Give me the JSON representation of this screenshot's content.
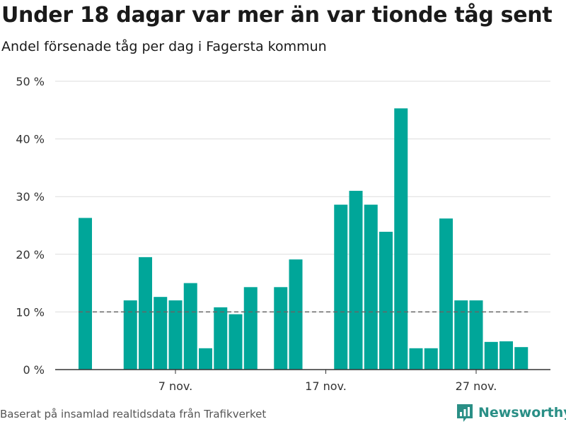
{
  "title": "Under 18 dagar var mer än var tionde tåg sent",
  "subtitle": "Andel försenade tåg per dag i Fagersta kommun",
  "source": "Baserat på insamlad realtidsdata från Trafikverket",
  "brand": {
    "name": "Newsworthy",
    "icon": "bar-chart-logo-icon"
  },
  "colors": {
    "bar": "#00a699",
    "grid": "#dddddd",
    "reference": "#666666",
    "brand": "#2a8f86"
  },
  "chart_data": {
    "type": "bar",
    "x": [
      "2018-11-01",
      "2018-11-02",
      "2018-11-03",
      "2018-11-04",
      "2018-11-05",
      "2018-11-06",
      "2018-11-07",
      "2018-11-08",
      "2018-11-09",
      "2018-11-10",
      "2018-11-11",
      "2018-11-12",
      "2018-11-13",
      "2018-11-14",
      "2018-11-15",
      "2018-11-16",
      "2018-11-17",
      "2018-11-18",
      "2018-11-19",
      "2018-11-20",
      "2018-11-21",
      "2018-11-22",
      "2018-11-23",
      "2018-11-24",
      "2018-11-25",
      "2018-11-26",
      "2018-11-27",
      "2018-11-28",
      "2018-11-29",
      "2018-11-30"
    ],
    "values": [
      26.3,
      null,
      null,
      12.0,
      19.5,
      12.6,
      12.0,
      15.0,
      3.7,
      10.8,
      9.6,
      14.3,
      null,
      14.3,
      19.1,
      null,
      null,
      28.6,
      31.0,
      28.6,
      23.9,
      45.3,
      3.7,
      3.7,
      26.2,
      12.0,
      12.0,
      4.8,
      4.9,
      3.9
    ],
    "reference_line": 10,
    "ylim": [
      0,
      50
    ],
    "yticks": [
      {
        "value": 0,
        "label": "0 %"
      },
      {
        "value": 10,
        "label": "10 %"
      },
      {
        "value": 20,
        "label": "20 %"
      },
      {
        "value": 30,
        "label": "30 %"
      },
      {
        "value": 40,
        "label": "40 %"
      },
      {
        "value": 50,
        "label": "50 %"
      }
    ],
    "xticks": [
      {
        "date": "2018-11-07",
        "label": "7 nov."
      },
      {
        "date": "2018-11-17",
        "label": "17 nov."
      },
      {
        "date": "2018-11-27",
        "label": "27 nov."
      }
    ],
    "grid": true,
    "legend": "none",
    "xlabel": "",
    "ylabel": ""
  }
}
